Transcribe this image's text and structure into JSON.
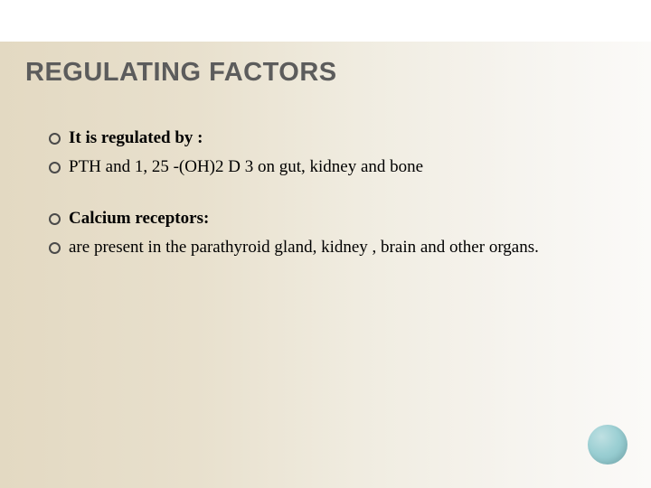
{
  "slide": {
    "title": "REGULATING FACTORS",
    "title_fontsize": 29,
    "title_color": "#5c5c5c",
    "body_fontsize": 19,
    "body_color": "#000000",
    "background_gradient": [
      "#e3d9c2",
      "#fbfaf8"
    ],
    "top_bar_color": "#ffffff",
    "bullet_border_color": "#4a4a4a",
    "groups": [
      {
        "items": [
          {
            "text": "It is regulated by :",
            "bold": true
          },
          {
            "text": "PTH and 1, 25 -(OH)2 D 3 on gut, kidney and bone",
            "bold": false
          }
        ]
      },
      {
        "items": [
          {
            "text": " Calcium receptors:",
            "bold": true
          },
          {
            "text": "are present in the parathyroid gland, kidney  , brain and other organs.",
            "bold": false
          }
        ]
      }
    ],
    "decor_circle_color": "#9bcfd3"
  }
}
